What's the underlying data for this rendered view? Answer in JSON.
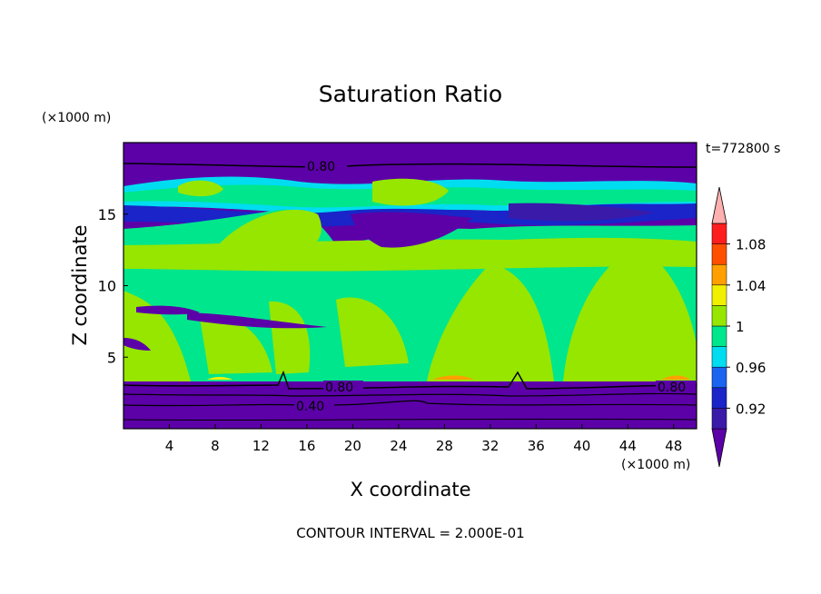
{
  "chart_data": {
    "type": "heatmap",
    "title": "Saturation Ratio",
    "xlabel": "X coordinate",
    "ylabel": "Z coordinate",
    "x_unit": "(×1000 m)",
    "y_unit": "(×1000 m)",
    "time_label": "t=772800 s",
    "footer": "CONTOUR INTERVAL = 2.000E-01",
    "xlim": [
      0,
      50
    ],
    "ylim": [
      0,
      20
    ],
    "x_ticks": [
      4,
      8,
      12,
      16,
      20,
      24,
      28,
      32,
      36,
      40,
      44,
      48
    ],
    "y_ticks": [
      5,
      10,
      15
    ],
    "contour_labels": [
      "0.80",
      "0.80",
      "0.80",
      "0.40"
    ],
    "colorbar": {
      "levels": [
        0.9,
        0.92,
        0.94,
        0.96,
        0.98,
        1.0,
        1.02,
        1.04,
        1.06,
        1.08,
        1.1
      ],
      "tick_labels": [
        "1.08",
        "1.04",
        "1",
        "0.96",
        "0.92"
      ],
      "colors": [
        "#5c00a8",
        "#3a1aa8",
        "#1a24c8",
        "#1a64f0",
        "#00dcf0",
        "#00e68c",
        "#96e600",
        "#f0f000",
        "#ffa000",
        "#ff5000",
        "#ff1e1e",
        "#ffb0b0"
      ]
    }
  }
}
